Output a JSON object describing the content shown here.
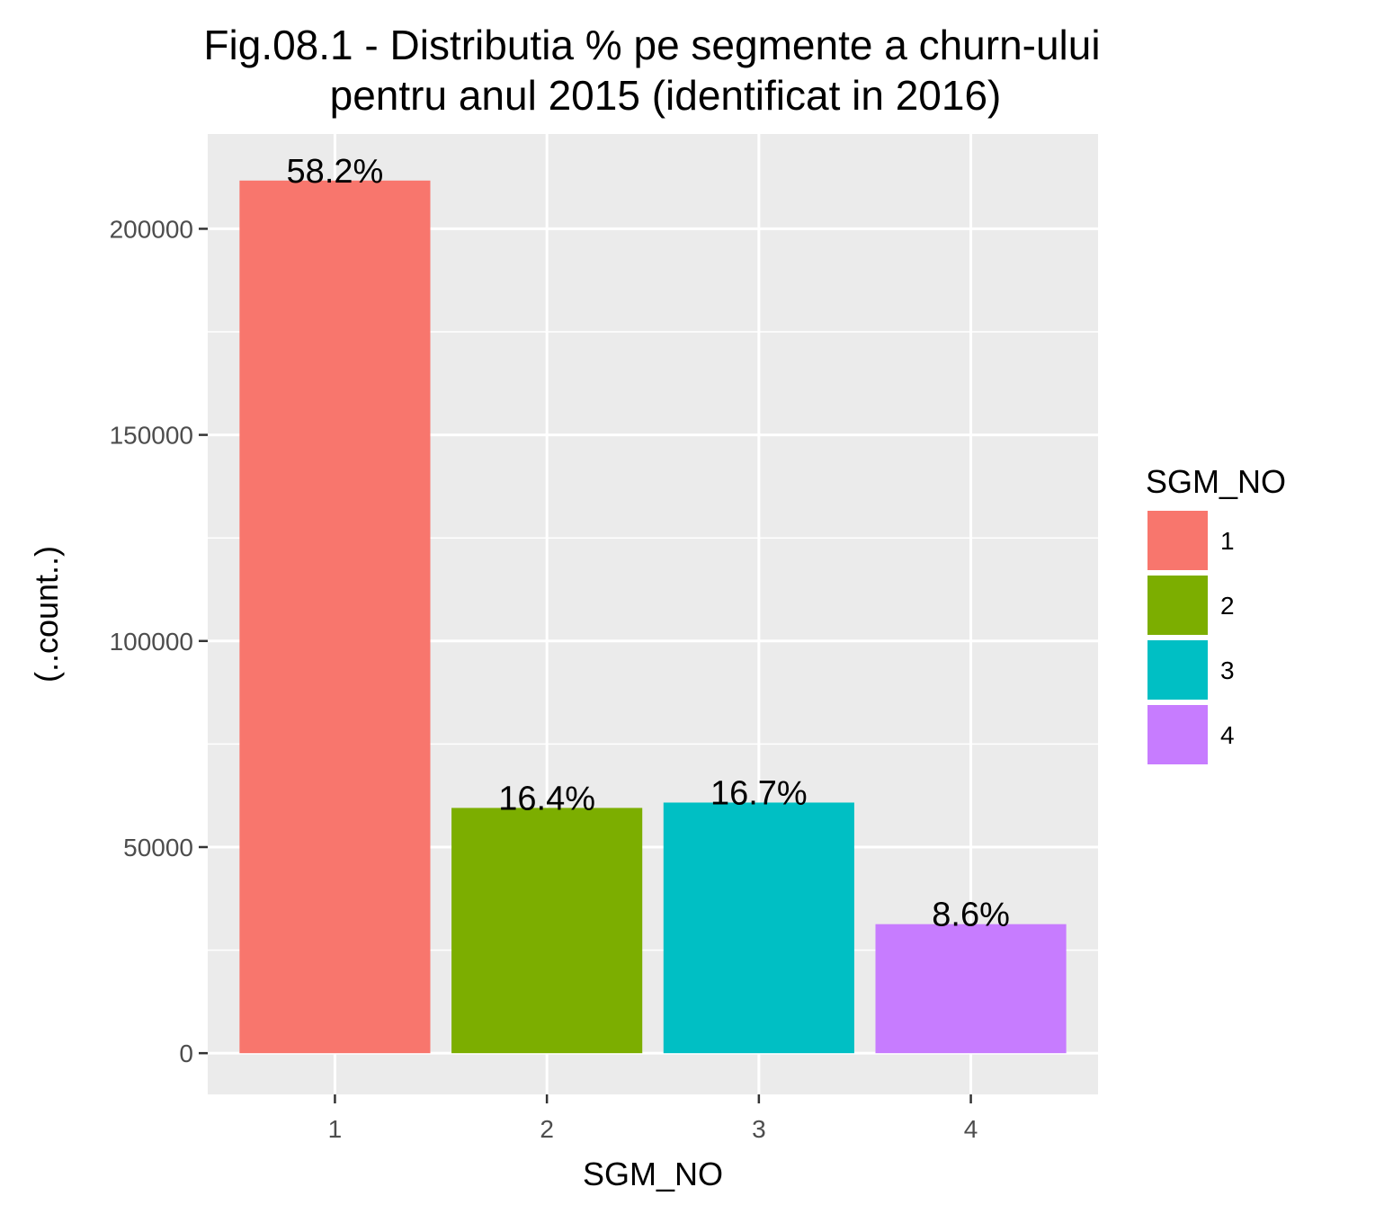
{
  "chart_data": {
    "type": "bar",
    "title_lines": [
      "Fig.08.1 - Distributia % pe segmente a churn-ului",
      "pentru anul 2015 (identificat in 2016)"
    ],
    "xlabel": "SGM_NO",
    "ylabel": "(..count..)",
    "categories": [
      "1",
      "2",
      "3",
      "4"
    ],
    "values": [
      211700,
      59500,
      60800,
      31300
    ],
    "data_labels": [
      "58.2%",
      "16.4%",
      "16.7%",
      "8.6%"
    ],
    "colors": [
      "#F8766D",
      "#7CAE00",
      "#00BFC4",
      "#C77CFF"
    ],
    "ylim": [
      -10000,
      223000
    ],
    "yticks": [
      0,
      50000,
      100000,
      150000,
      200000
    ],
    "ytick_labels": [
      "0",
      "50000",
      "100000",
      "150000",
      "200000"
    ],
    "grid": true,
    "panel_background": "#EBEBEB",
    "grid_color": "#FFFFFF",
    "legend": {
      "title": "SGM_NO",
      "position": "right",
      "labels": [
        "1",
        "2",
        "3",
        "4"
      ]
    }
  }
}
